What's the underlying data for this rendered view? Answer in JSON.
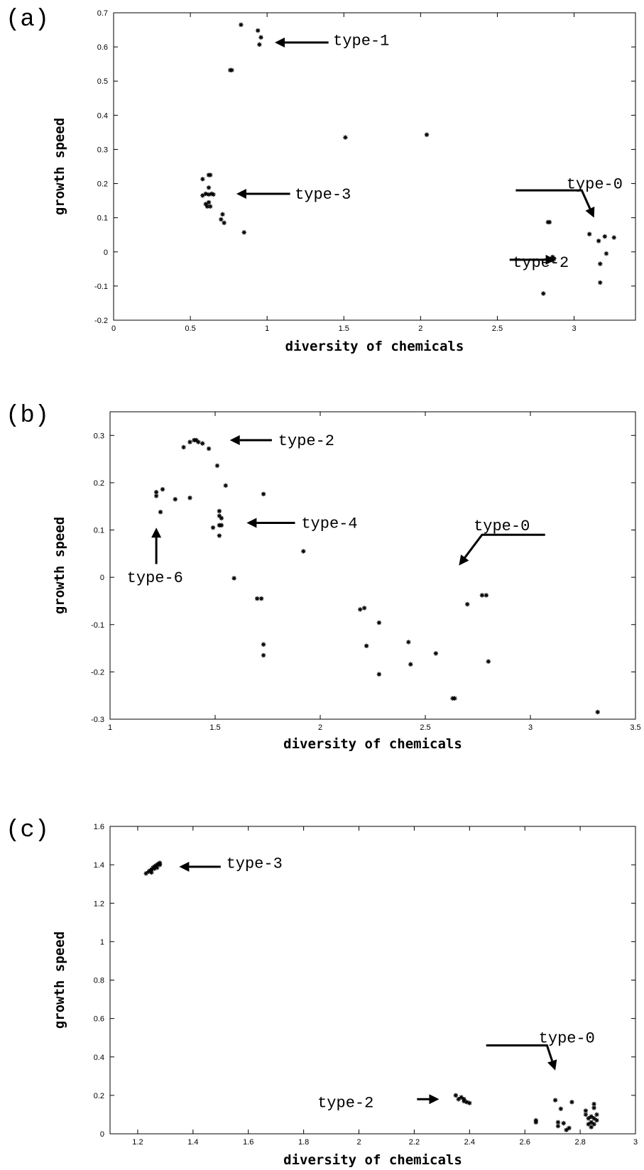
{
  "chart_data": [
    {
      "type": "scatter",
      "panel": "(a)",
      "xlabel": "diversity of chemicals",
      "ylabel": "growth speed",
      "xlim": [
        0,
        3.4
      ],
      "ylim": [
        -0.2,
        0.7
      ],
      "xticks": [
        0,
        0.5,
        1,
        1.5,
        2,
        2.5,
        3
      ],
      "xtick_labels": [
        "0",
        "0.5",
        "1",
        "1.5",
        "2",
        "2.5",
        "3"
      ],
      "yticks": [
        -0.2,
        -0.1,
        0,
        0.1,
        0.2,
        0.3,
        0.4,
        0.5,
        0.6,
        0.7
      ],
      "ytick_labels": [
        "-0.2",
        "-0.1",
        "0",
        "0.1",
        "0.2",
        "0.3",
        "0.4",
        "0.5",
        "0.6",
        "0.7"
      ],
      "points": [
        [
          0.83,
          0.665
        ],
        [
          0.94,
          0.648
        ],
        [
          0.95,
          0.607
        ],
        [
          0.96,
          0.628
        ],
        [
          0.77,
          0.532
        ],
        [
          0.76,
          0.532
        ],
        [
          0.58,
          0.213
        ],
        [
          0.63,
          0.225
        ],
        [
          0.62,
          0.225
        ],
        [
          0.62,
          0.188
        ],
        [
          0.64,
          0.17
        ],
        [
          0.58,
          0.165
        ],
        [
          0.6,
          0.17
        ],
        [
          0.62,
          0.168
        ],
        [
          0.6,
          0.14
        ],
        [
          0.62,
          0.145
        ],
        [
          0.61,
          0.133
        ],
        [
          0.63,
          0.133
        ],
        [
          0.65,
          0.168
        ],
        [
          0.71,
          0.11
        ],
        [
          0.7,
          0.095
        ],
        [
          0.72,
          0.085
        ],
        [
          0.85,
          0.057
        ],
        [
          1.51,
          0.335
        ],
        [
          2.04,
          0.343
        ],
        [
          2.83,
          0.087
        ],
        [
          2.84,
          0.087
        ],
        [
          2.86,
          -0.015
        ],
        [
          2.86,
          -0.025
        ],
        [
          2.87,
          -0.02
        ],
        [
          2.8,
          -0.122
        ],
        [
          3.1,
          0.052
        ],
        [
          3.16,
          0.032
        ],
        [
          3.2,
          0.045
        ],
        [
          3.26,
          0.042
        ],
        [
          3.21,
          -0.005
        ],
        [
          3.17,
          -0.035
        ],
        [
          3.17,
          -0.09
        ]
      ],
      "annotations": [
        {
          "label": "type-1",
          "text_at": [
            1.43,
            0.62
          ],
          "tail": [
            1.4,
            0.613
          ],
          "head": [
            1.05,
            0.613
          ]
        },
        {
          "label": "type-3",
          "text_at": [
            1.18,
            0.17
          ],
          "tail": [
            1.15,
            0.17
          ],
          "head": [
            0.8,
            0.17
          ]
        },
        {
          "label": "type-0",
          "text_at": [
            2.95,
            0.2
          ],
          "path": [
            [
              2.62,
              0.18
            ],
            [
              3.05,
              0.18
            ],
            [
              3.13,
              0.1
            ]
          ]
        },
        {
          "label": "type-2",
          "text_at": [
            2.6,
            -0.03
          ],
          "tail": [
            2.58,
            -0.023
          ],
          "head": [
            2.88,
            -0.023
          ]
        }
      ]
    },
    {
      "type": "scatter",
      "panel": "(b)",
      "xlabel": "diversity of chemicals",
      "ylabel": "growth speed",
      "xlim": [
        1,
        3.5
      ],
      "ylim": [
        -0.3,
        0.35
      ],
      "xticks": [
        1,
        1.5,
        2,
        2.5,
        3,
        3.5
      ],
      "xtick_labels": [
        "1",
        "1.5",
        "2",
        "2.5",
        "3",
        "3.5"
      ],
      "yticks": [
        -0.3,
        -0.2,
        -0.1,
        0,
        0.1,
        0.2,
        0.3
      ],
      "ytick_labels": [
        "-0.3",
        "-0.2",
        "-0.1",
        "0",
        "0.1",
        "0.2",
        "0.3"
      ],
      "points": [
        [
          1.35,
          0.275
        ],
        [
          1.38,
          0.286
        ],
        [
          1.4,
          0.29
        ],
        [
          1.41,
          0.29
        ],
        [
          1.42,
          0.286
        ],
        [
          1.44,
          0.283
        ],
        [
          1.47,
          0.272
        ],
        [
          1.51,
          0.236
        ],
        [
          1.55,
          0.194
        ],
        [
          1.52,
          0.14
        ],
        [
          1.52,
          0.13
        ],
        [
          1.53,
          0.125
        ],
        [
          1.52,
          0.11
        ],
        [
          1.53,
          0.11
        ],
        [
          1.49,
          0.105
        ],
        [
          1.52,
          0.088
        ],
        [
          1.73,
          0.176
        ],
        [
          1.22,
          0.18
        ],
        [
          1.22,
          0.172
        ],
        [
          1.25,
          0.186
        ],
        [
          1.31,
          0.165
        ],
        [
          1.38,
          0.168
        ],
        [
          1.24,
          0.138
        ],
        [
          1.59,
          -0.002
        ],
        [
          1.7,
          -0.045
        ],
        [
          1.72,
          -0.045
        ],
        [
          1.73,
          -0.142
        ],
        [
          1.73,
          -0.165
        ],
        [
          1.92,
          0.055
        ],
        [
          2.19,
          -0.068
        ],
        [
          2.21,
          -0.065
        ],
        [
          2.22,
          -0.145
        ],
        [
          2.28,
          -0.096
        ],
        [
          2.28,
          -0.205
        ],
        [
          2.42,
          -0.137
        ],
        [
          2.43,
          -0.184
        ],
        [
          2.55,
          -0.161
        ],
        [
          2.64,
          -0.256
        ],
        [
          2.63,
          -0.256
        ],
        [
          2.7,
          -0.057
        ],
        [
          2.77,
          -0.038
        ],
        [
          2.79,
          -0.038
        ],
        [
          2.8,
          -0.178
        ],
        [
          3.32,
          -0.285
        ]
      ],
      "annotations": [
        {
          "label": "type-2",
          "text_at": [
            1.8,
            0.29
          ],
          "tail": [
            1.77,
            0.29
          ],
          "head": [
            1.57,
            0.29
          ]
        },
        {
          "label": "type-4",
          "text_at": [
            1.91,
            0.115
          ],
          "tail": [
            1.88,
            0.115
          ],
          "head": [
            1.65,
            0.115
          ]
        },
        {
          "label": "type-6",
          "text_at": [
            1.08,
            0.0
          ],
          "tail": [
            1.22,
            0.028
          ],
          "head": [
            1.22,
            0.105
          ]
        },
        {
          "label": "type-0",
          "text_at": [
            2.73,
            0.11
          ],
          "path": [
            [
              3.07,
              0.09
            ],
            [
              2.77,
              0.09
            ],
            [
              2.66,
              0.025
            ]
          ]
        }
      ]
    },
    {
      "type": "scatter",
      "panel": "(c)",
      "xlabel": "diversity of chemicals",
      "ylabel": "growth speed",
      "xlim": [
        1.1,
        3
      ],
      "ylim": [
        0,
        1.6
      ],
      "xticks": [
        1.2,
        1.4,
        1.6,
        1.8,
        2,
        2.2,
        2.4,
        2.6,
        2.8,
        3
      ],
      "xtick_labels": [
        "1.2",
        "1.4",
        "1.6",
        "1.8",
        "2",
        "2.2",
        "2.4",
        "2.6",
        "2.8",
        "3"
      ],
      "yticks": [
        0,
        0.2,
        0.4,
        0.6,
        0.8,
        1,
        1.2,
        1.4,
        1.6
      ],
      "ytick_labels": [
        "0",
        "0.2",
        "0.4",
        "0.6",
        "0.8",
        "1",
        "1.2",
        "1.4",
        "1.6"
      ],
      "points": [
        [
          1.23,
          1.355
        ],
        [
          1.24,
          1.365
        ],
        [
          1.245,
          1.37
        ],
        [
          1.25,
          1.375
        ],
        [
          1.25,
          1.36
        ],
        [
          1.255,
          1.385
        ],
        [
          1.26,
          1.38
        ],
        [
          1.26,
          1.39
        ],
        [
          1.265,
          1.395
        ],
        [
          1.27,
          1.4
        ],
        [
          1.27,
          1.385
        ],
        [
          1.275,
          1.405
        ],
        [
          1.28,
          1.4
        ],
        [
          1.28,
          1.41
        ],
        [
          2.35,
          0.2
        ],
        [
          2.36,
          0.18
        ],
        [
          2.37,
          0.19
        ],
        [
          2.38,
          0.17
        ],
        [
          2.38,
          0.18
        ],
        [
          2.39,
          0.165
        ],
        [
          2.4,
          0.16
        ],
        [
          2.64,
          0.06
        ],
        [
          2.64,
          0.07
        ],
        [
          2.71,
          0.175
        ],
        [
          2.72,
          0.06
        ],
        [
          2.72,
          0.04
        ],
        [
          2.73,
          0.13
        ],
        [
          2.74,
          0.055
        ],
        [
          2.75,
          0.02
        ],
        [
          2.76,
          0.03
        ],
        [
          2.77,
          0.165
        ],
        [
          2.82,
          0.12
        ],
        [
          2.82,
          0.1
        ],
        [
          2.83,
          0.08
        ],
        [
          2.83,
          0.05
        ],
        [
          2.84,
          0.09
        ],
        [
          2.84,
          0.06
        ],
        [
          2.84,
          0.035
        ],
        [
          2.85,
          0.155
        ],
        [
          2.85,
          0.135
        ],
        [
          2.85,
          0.08
        ],
        [
          2.85,
          0.05
        ],
        [
          2.86,
          0.07
        ],
        [
          2.86,
          0.1
        ]
      ],
      "annotations": [
        {
          "label": "type-3",
          "text_at": [
            1.52,
            1.41
          ],
          "tail": [
            1.5,
            1.39
          ],
          "head": [
            1.35,
            1.39
          ]
        },
        {
          "label": "type-2",
          "text_at": [
            1.85,
            0.165
          ],
          "tail": [
            2.21,
            0.18
          ],
          "head": [
            2.29,
            0.18
          ]
        },
        {
          "label": "type-0",
          "text_at": [
            2.65,
            0.5
          ],
          "path": [
            [
              2.46,
              0.46
            ],
            [
              2.68,
              0.46
            ],
            [
              2.71,
              0.33
            ]
          ]
        }
      ]
    }
  ]
}
